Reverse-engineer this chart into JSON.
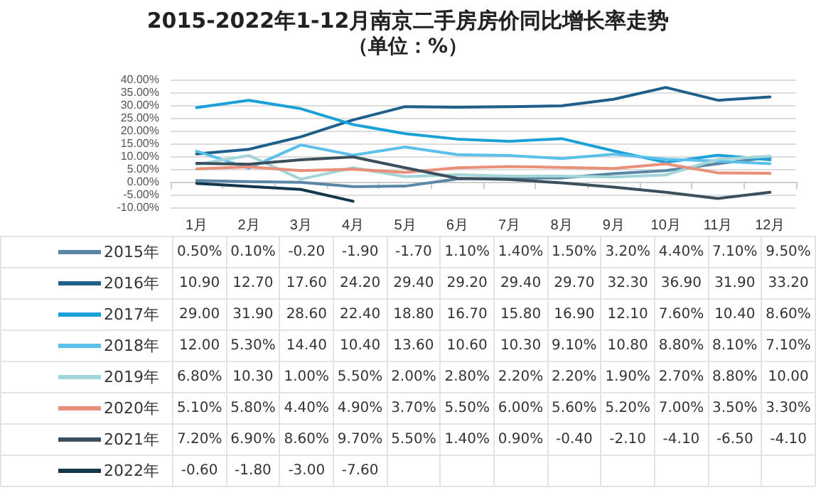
{
  "chart_data": {
    "type": "line",
    "title": "2015-2022年1-12月南京二手房房价同比增长率走势",
    "subtitle": "（单位：%）",
    "categories": [
      "1月",
      "2月",
      "3月",
      "4月",
      "5月",
      "6月",
      "7月",
      "8月",
      "9月",
      "10月",
      "11月",
      "12月"
    ],
    "ylim": [
      -10,
      40
    ],
    "yticks": [
      {
        "value": -10,
        "label": "-10.00%"
      },
      {
        "value": -5,
        "label": "-5.00%"
      },
      {
        "value": 0,
        "label": "0.00%"
      },
      {
        "value": 5,
        "label": "5.00%"
      },
      {
        "value": 10,
        "label": "10.00%"
      },
      {
        "value": 15,
        "label": "15.00%"
      },
      {
        "value": 20,
        "label": "20.00%"
      },
      {
        "value": 25,
        "label": "25.00%"
      },
      {
        "value": 30,
        "label": "30.00%"
      },
      {
        "value": 35,
        "label": "35.00%"
      },
      {
        "value": 40,
        "label": "40.00%"
      }
    ],
    "grid": "y",
    "legend": "bottom",
    "marker": "none",
    "line_style": "solid",
    "series": [
      {
        "name": "2015年",
        "color": "#5b87a6",
        "values": [
          0.5,
          0.1,
          -0.2,
          -1.9,
          -1.7,
          1.1,
          1.4,
          1.5,
          3.2,
          4.4,
          7.1,
          9.5
        ],
        "value_labels": [
          "0.50%",
          "0.10%",
          "-0.20",
          "-1.90",
          "-1.70",
          "1.10%",
          "1.40%",
          "1.50%",
          "3.20%",
          "4.40%",
          "7.10%",
          "9.50%"
        ]
      },
      {
        "name": "2016年",
        "color": "#1f5f8b",
        "values": [
          10.9,
          12.7,
          17.6,
          24.2,
          29.4,
          29.2,
          29.4,
          29.7,
          32.3,
          36.9,
          31.9,
          33.2
        ],
        "value_labels": [
          "10.90",
          "12.70",
          "17.60",
          "24.20",
          "29.40",
          "29.20",
          "29.40",
          "29.70",
          "32.30",
          "36.90",
          "31.90",
          "33.20"
        ]
      },
      {
        "name": "2017年",
        "color": "#1ba1d8",
        "values": [
          29,
          31.9,
          28.6,
          22.4,
          18.8,
          16.7,
          15.8,
          16.9,
          12.1,
          7.6,
          10.4,
          8.6
        ],
        "value_labels": [
          "29.00",
          "31.90",
          "28.60",
          "22.40",
          "18.80",
          "16.70",
          "15.80",
          "16.90",
          "12.10",
          "7.60%",
          "10.40",
          "8.60%"
        ]
      },
      {
        "name": "2018年",
        "color": "#5bc0eb",
        "values": [
          12,
          5.3,
          14.4,
          10.4,
          13.6,
          10.6,
          10.3,
          9.1,
          10.8,
          8.8,
          8.1,
          7.1
        ],
        "value_labels": [
          "12.00",
          "5.30%",
          "14.40",
          "10.40",
          "13.60",
          "10.60",
          "10.30",
          "9.10%",
          "10.80",
          "8.80%",
          "8.10%",
          "7.10%"
        ]
      },
      {
        "name": "2019年",
        "color": "#a3d4d8",
        "values": [
          6.8,
          10.3,
          1,
          5.5,
          2,
          2.8,
          2.2,
          2.2,
          1.9,
          2.7,
          8.8,
          10
        ],
        "value_labels": [
          "6.80%",
          "10.30",
          "1.00%",
          "5.50%",
          "2.00%",
          "2.80%",
          "2.20%",
          "2.20%",
          "1.90%",
          "2.70%",
          "8.80%",
          "10.00"
        ]
      },
      {
        "name": "2020年",
        "color": "#e8907a",
        "values": [
          5.1,
          5.8,
          4.4,
          4.9,
          3.7,
          5.5,
          6,
          5.6,
          5.2,
          7,
          3.5,
          3.3
        ],
        "value_labels": [
          "5.10%",
          "5.80%",
          "4.40%",
          "4.90%",
          "3.70%",
          "5.50%",
          "6.00%",
          "5.60%",
          "5.20%",
          "7.00%",
          "3.50%",
          "3.30%"
        ]
      },
      {
        "name": "2021年",
        "color": "#3b4f5c",
        "values": [
          7.2,
          6.9,
          8.6,
          9.7,
          5.5,
          1.4,
          0.9,
          -0.4,
          -2.1,
          -4.1,
          -6.5,
          -4.1
        ],
        "value_labels": [
          "7.20%",
          "6.90%",
          "8.60%",
          "9.70%",
          "5.50%",
          "1.40%",
          "0.90%",
          "-0.40",
          "-2.10",
          "-4.10",
          "-6.50",
          "-4.10"
        ]
      },
      {
        "name": "2022年",
        "color": "#12364a",
        "values": [
          -0.6,
          -1.8,
          -3,
          -7.6,
          null,
          null,
          null,
          null,
          null,
          null,
          null,
          null
        ],
        "value_labels": [
          "-0.60",
          "-1.80",
          "-3.00",
          "-7.60",
          null,
          null,
          null,
          null,
          null,
          null,
          null,
          null
        ]
      }
    ]
  }
}
